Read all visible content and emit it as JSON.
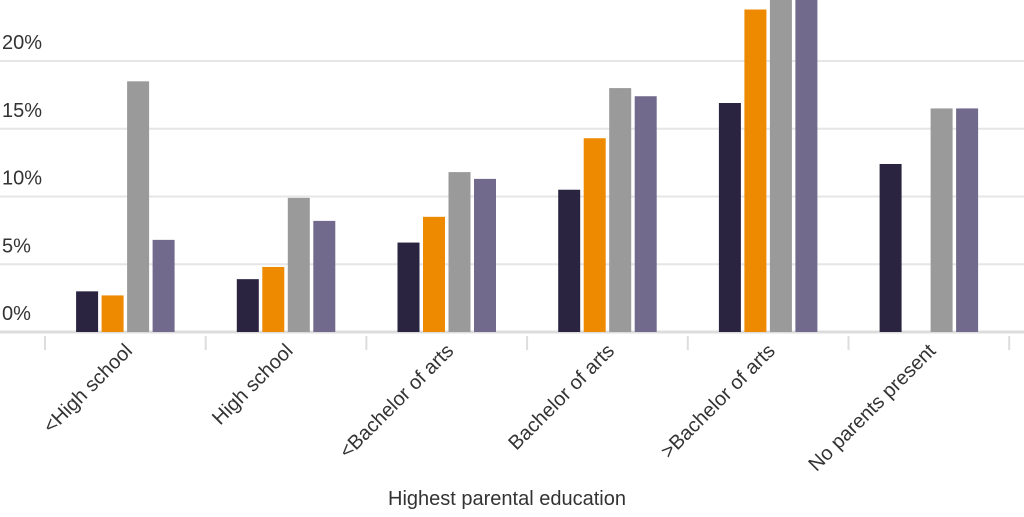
{
  "chart_data": {
    "type": "bar",
    "xlabel": "Highest parental education",
    "ylabel": "",
    "ylim": [
      0,
      24.4
    ],
    "yticks": [
      "0%",
      "5%",
      "10%",
      "15%",
      "20%"
    ],
    "ytick_values": [
      0,
      5,
      10,
      15,
      20
    ],
    "grid": true,
    "legend": "none",
    "categories": [
      "<High school",
      "High school",
      "<Bachelor of arts",
      "Bachelor of arts",
      ">Bachelor of arts",
      "No parents present"
    ],
    "series": [
      {
        "color": "#2a2440",
        "values": [
          3.0,
          3.9,
          6.6,
          10.5,
          16.9,
          12.4
        ]
      },
      {
        "color": "#ee8a00",
        "values": [
          2.7,
          4.8,
          8.5,
          14.3,
          23.8,
          null
        ]
      },
      {
        "color": "#9a9a9a",
        "values": [
          18.5,
          9.9,
          11.8,
          18.0,
          25.5,
          16.5
        ]
      },
      {
        "color": "#716a8c",
        "values": [
          6.8,
          8.2,
          11.3,
          17.4,
          26.0,
          16.5
        ]
      }
    ]
  }
}
